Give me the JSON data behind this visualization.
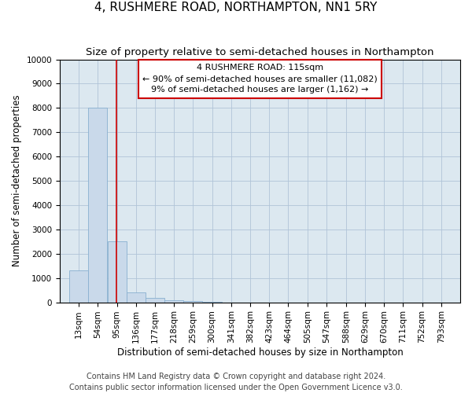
{
  "title": "4, RUSHMERE ROAD, NORTHAMPTON, NN1 5RY",
  "subtitle": "Size of property relative to semi-detached houses in Northampton",
  "xlabel": "Distribution of semi-detached houses by size in Northampton",
  "ylabel": "Number of semi-detached properties",
  "footer1": "Contains HM Land Registry data © Crown copyright and database right 2024.",
  "footer2": "Contains public sector information licensed under the Open Government Licence v3.0.",
  "annotation_title": "4 RUSHMERE ROAD: 115sqm",
  "annotation_line1": "← 90% of semi-detached houses are smaller (11,082)",
  "annotation_line2": "9% of semi-detached houses are larger (1,162) →",
  "property_size": 115,
  "bar_edges": [
    13,
    54,
    95,
    136,
    177,
    218,
    259,
    300,
    341,
    382,
    423,
    464,
    505,
    547,
    588,
    629,
    670,
    711,
    752,
    793,
    834
  ],
  "bar_heights": [
    1300,
    8000,
    2500,
    400,
    175,
    100,
    50,
    10,
    3,
    2,
    1,
    1,
    0,
    0,
    0,
    0,
    0,
    0,
    0,
    0
  ],
  "bar_color": "#c9d9ea",
  "bar_edge_color": "#89b0d0",
  "red_line_color": "#cc0000",
  "annotation_box_color": "#cc0000",
  "ylim": [
    0,
    10000
  ],
  "yticks": [
    0,
    1000,
    2000,
    3000,
    4000,
    5000,
    6000,
    7000,
    8000,
    9000,
    10000
  ],
  "grid_color": "#b0c4d8",
  "bg_color": "#dce8f0",
  "title_fontsize": 11,
  "subtitle_fontsize": 9.5,
  "axis_label_fontsize": 8.5,
  "tick_fontsize": 7.5,
  "annotation_fontsize": 8,
  "footer_fontsize": 7
}
